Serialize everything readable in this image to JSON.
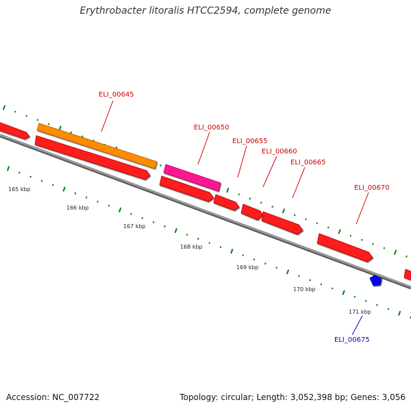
{
  "title": "Erythrobacter litoralis HTCC2594, complete genome",
  "footer": {
    "accession": "Accession: NC_007722",
    "topology": "Topology: circular; Length: 3,052,398 bp; Genes: 3,056"
  },
  "ruler": {
    "unit": "kbp",
    "labels": [
      "165 kbp",
      "166 kbp",
      "167 kbp",
      "168 kbp",
      "169 kbp",
      "170 kbp",
      "171 kbp"
    ]
  },
  "genes": [
    {
      "locus": "ELI_00645",
      "color": "#cc0000"
    },
    {
      "locus": "ELI_00650",
      "color": "#cc0000"
    },
    {
      "locus": "ELI_00655",
      "color": "#cc0000"
    },
    {
      "locus": "ELI_00660",
      "color": "#cc0000"
    },
    {
      "locus": "ELI_00665",
      "color": "#cc0000"
    },
    {
      "locus": "ELI_00670",
      "color": "#cc0000"
    },
    {
      "locus": "ELI_00675",
      "color": "#0000cc"
    }
  ],
  "colors": {
    "cds": "#ff0000",
    "gene_orange": "#ff8c00",
    "gene_pink": "#ff1493",
    "rna": "#0000ff",
    "backbone": "#808080",
    "ticks": "#008000"
  }
}
